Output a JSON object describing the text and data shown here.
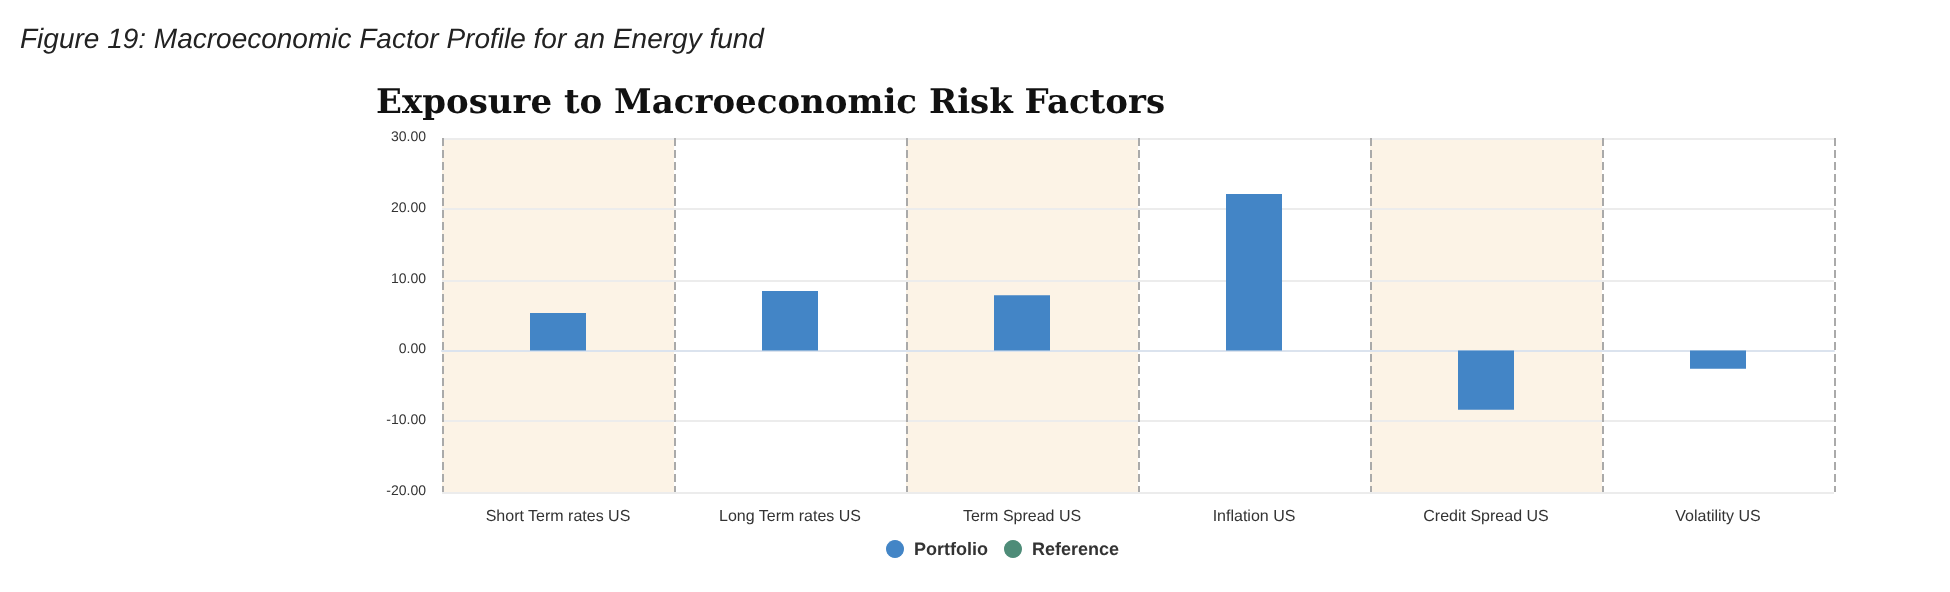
{
  "chart_data": {
    "type": "bar",
    "title": "Exposure to Macroeconomic Risk Factors",
    "annotations": [
      "Figure 19: Macroeconomic Factor Profile for an Energy fund"
    ],
    "categories": [
      "Short Term rates US",
      "Long Term rates US",
      "Term Spread US",
      "Inflation US",
      "Credit Spread US",
      "Volatility US"
    ],
    "series": [
      {
        "name": "Portfolio",
        "color": "#4385c6",
        "values": [
          5.3,
          8.4,
          7.8,
          22.1,
          -8.4,
          -2.6
        ]
      },
      {
        "name": "Reference",
        "color": "#4e8c78",
        "values": [
          null,
          null,
          null,
          null,
          null,
          null
        ]
      }
    ],
    "ylim": [
      -20,
      30
    ],
    "yticks": [
      {
        "value": -20,
        "label": "-20.00"
      },
      {
        "value": -10,
        "label": "-10.00"
      },
      {
        "value": 0,
        "label": "0.00"
      },
      {
        "value": 10,
        "label": "10.00"
      },
      {
        "value": 20,
        "label": "20.00"
      },
      {
        "value": 30,
        "label": "30.00"
      }
    ],
    "bands": [
      {
        "axis": "x",
        "from": "Short Term rates US",
        "to": "Short Term rates US",
        "color": "#fcf3e6"
      },
      {
        "axis": "x",
        "from": "Term Spread US",
        "to": "Term Spread US",
        "color": "#fcf3e6"
      },
      {
        "axis": "x",
        "from": "Credit Spread US",
        "to": "Credit Spread US",
        "color": "#fcf3e6"
      }
    ],
    "grid": true,
    "legend": "bottom",
    "marker": "circle"
  }
}
